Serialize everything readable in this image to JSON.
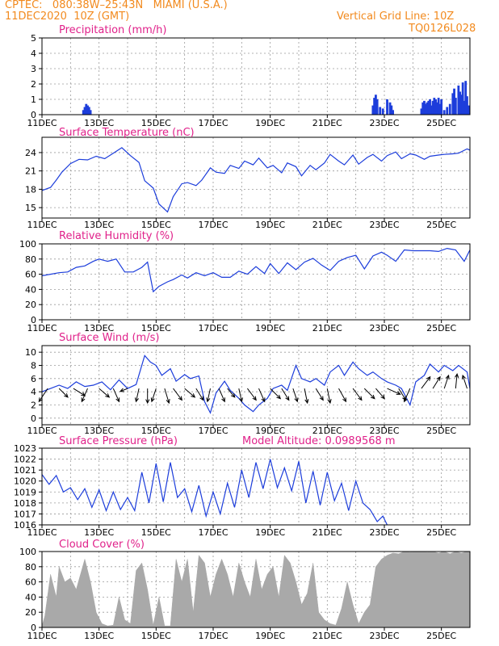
{
  "header": {
    "line1_left": "CPTEC:   080:38W–25:43N   MIAMI (U.S.A.)",
    "line2_left": "11DEC2020  10Z (GMT)",
    "line1_right": "Vertical Grid Line: 10Z",
    "line2_right": "TQ0126L028"
  },
  "colors": {
    "header": "#f28a1e",
    "title": "#e0218a",
    "line": "#1c3ddb",
    "bar": "#1c3ddb",
    "cloud": "#a9a9a9",
    "arrow": "#000000"
  },
  "chart_data": [
    {
      "type": "bar",
      "title": "Precipitation (mm/h)",
      "x_ticks": [
        "11DEC",
        "13DEC",
        "15DEC",
        "17DEC",
        "19DEC",
        "21DEC",
        "23DEC",
        "25DEC"
      ],
      "y_ticks": [
        "0",
        "1",
        "2",
        "3",
        "4",
        "5"
      ],
      "ylim": [
        0,
        5
      ],
      "x_range_days": [
        11,
        26
      ],
      "grid": true,
      "series": [
        {
          "x": [
            12.45,
            12.5,
            12.55,
            12.6,
            12.65,
            12.7,
            22.6,
            22.65,
            22.7,
            22.75,
            22.85,
            22.95,
            23.1,
            23.2,
            23.25,
            23.3,
            24.3,
            24.35,
            24.4,
            24.45,
            24.5,
            24.55,
            24.6,
            24.65,
            24.7,
            24.75,
            24.8,
            24.85,
            24.9,
            24.95,
            25.0,
            25.1,
            25.2,
            25.3,
            25.4,
            25.45,
            25.5,
            25.6,
            25.65,
            25.7,
            25.75,
            25.8,
            25.85,
            25.9,
            25.95
          ],
          "values": [
            0.3,
            0.5,
            0.7,
            0.6,
            0.5,
            0.3,
            0.6,
            1.1,
            1.3,
            1.0,
            0.5,
            0.4,
            1.0,
            0.8,
            0.6,
            0.3,
            0.4,
            0.8,
            0.9,
            0.7,
            0.8,
            0.9,
            1.0,
            0.6,
            0.9,
            1.1,
            1.0,
            0.8,
            1.1,
            0.7,
            1.0,
            0.3,
            0.5,
            0.7,
            1.4,
            1.7,
            1.1,
            1.9,
            1.5,
            1.3,
            2.1,
            0.9,
            2.2,
            1.2,
            0.6
          ]
        }
      ]
    },
    {
      "type": "line",
      "title": "Surface Temperature (nC)",
      "x_ticks": [
        "11DEC",
        "13DEC",
        "15DEC",
        "17DEC",
        "19DEC",
        "21DEC",
        "23DEC",
        "25DEC"
      ],
      "y_ticks": [
        "15",
        "18",
        "21",
        "24"
      ],
      "ylim": [
        13.3,
        26.5
      ],
      "x_range_days": [
        11,
        26
      ],
      "grid": true,
      "series": [
        {
          "x": [
            11.0,
            11.3,
            11.5,
            11.7,
            12.0,
            12.3,
            12.6,
            12.9,
            13.2,
            13.5,
            13.8,
            14.1,
            14.4,
            14.6,
            14.9,
            15.1,
            15.4,
            15.6,
            15.9,
            16.1,
            16.4,
            16.6,
            16.9,
            17.1,
            17.4,
            17.6,
            17.9,
            18.1,
            18.4,
            18.6,
            18.9,
            19.1,
            19.4,
            19.6,
            19.9,
            20.1,
            20.4,
            20.6,
            20.9,
            21.1,
            21.4,
            21.6,
            21.9,
            22.1,
            22.4,
            22.6,
            22.9,
            23.1,
            23.4,
            23.6,
            23.9,
            24.1,
            24.4,
            24.6,
            24.9,
            25.1,
            25.4,
            25.6,
            25.9,
            26.0
          ],
          "values": [
            17.8,
            18.3,
            19.5,
            20.8,
            22.2,
            22.9,
            22.8,
            23.4,
            23.0,
            23.9,
            24.8,
            23.5,
            22.4,
            19.4,
            18.2,
            15.6,
            14.3,
            16.8,
            18.9,
            19.1,
            18.6,
            19.5,
            21.5,
            20.8,
            20.6,
            21.9,
            21.4,
            22.6,
            22.0,
            23.1,
            21.5,
            21.9,
            20.7,
            22.3,
            21.7,
            20.2,
            21.9,
            21.2,
            22.3,
            23.7,
            22.6,
            22.0,
            23.6,
            22.1,
            23.2,
            23.7,
            22.6,
            23.5,
            24.1,
            23.0,
            23.8,
            23.6,
            22.9,
            23.4,
            23.6,
            23.7,
            23.8,
            23.9,
            24.6,
            24.4
          ]
        }
      ]
    },
    {
      "type": "line",
      "title": "Relative Humidity (%)",
      "x_ticks": [
        "11DEC",
        "13DEC",
        "15DEC",
        "17DEC",
        "19DEC",
        "21DEC",
        "23DEC",
        "25DEC"
      ],
      "y_ticks": [
        "0",
        "20",
        "40",
        "60",
        "80",
        "100"
      ],
      "ylim": [
        0,
        100
      ],
      "x_range_days": [
        11,
        26
      ],
      "grid": true,
      "series": [
        {
          "x": [
            11.0,
            11.3,
            11.6,
            11.9,
            12.2,
            12.5,
            12.8,
            13.0,
            13.3,
            13.6,
            13.9,
            14.2,
            14.5,
            14.7,
            14.9,
            15.1,
            15.4,
            15.6,
            15.9,
            16.1,
            16.4,
            16.7,
            17.0,
            17.3,
            17.6,
            17.9,
            18.2,
            18.5,
            18.8,
            19.0,
            19.3,
            19.6,
            19.9,
            20.2,
            20.5,
            20.8,
            21.1,
            21.4,
            21.7,
            22.0,
            22.3,
            22.6,
            22.9,
            23.1,
            23.4,
            23.7,
            24.0,
            24.3,
            24.6,
            24.9,
            25.2,
            25.5,
            25.8,
            26.0
          ],
          "values": [
            58,
            60,
            62,
            63,
            69,
            71,
            77,
            80,
            77,
            80,
            63,
            63,
            69,
            76,
            37,
            44,
            50,
            53,
            59,
            55,
            62,
            58,
            62,
            56,
            56,
            64,
            60,
            70,
            61,
            74,
            61,
            75,
            66,
            76,
            81,
            72,
            65,
            77,
            82,
            85,
            67,
            84,
            89,
            85,
            77,
            92,
            91,
            91,
            91,
            90,
            94,
            92,
            77,
            92
          ]
        }
      ]
    },
    {
      "type": "line",
      "title": "Surface Wind (m/s)",
      "x_ticks": [
        "11DEC",
        "13DEC",
        "15DEC",
        "17DEC",
        "19DEC",
        "21DEC",
        "23DEC",
        "25DEC"
      ],
      "y_ticks": [
        "0",
        "2",
        "4",
        "6",
        "8",
        "10"
      ],
      "ylim": [
        -1,
        11
      ],
      "x_range_days": [
        11,
        26
      ],
      "grid": true,
      "series": [
        {
          "x": [
            11.0,
            11.3,
            11.6,
            11.9,
            12.2,
            12.5,
            12.8,
            13.1,
            13.4,
            13.7,
            14.0,
            14.3,
            14.6,
            14.8,
            15.0,
            15.2,
            15.5,
            15.7,
            16.0,
            16.2,
            16.5,
            16.7,
            16.9,
            17.1,
            17.4,
            17.6,
            17.9,
            18.1,
            18.4,
            18.6,
            18.9,
            19.1,
            19.4,
            19.6,
            19.9,
            20.1,
            20.4,
            20.6,
            20.9,
            21.1,
            21.4,
            21.6,
            21.9,
            22.1,
            22.4,
            22.6,
            22.9,
            23.1,
            23.4,
            23.6,
            23.9,
            24.1,
            24.4,
            24.6,
            24.9,
            25.1,
            25.4,
            25.6,
            25.9,
            26.0
          ],
          "values": [
            4.0,
            4.5,
            5.0,
            4.5,
            5.5,
            4.8,
            5.0,
            5.5,
            4.3,
            5.8,
            4.5,
            5.1,
            9.5,
            8.5,
            8.0,
            6.5,
            7.5,
            5.6,
            6.6,
            6.0,
            6.4,
            2.5,
            0.8,
            3.8,
            5.6,
            4.2,
            3.0,
            2.0,
            1.0,
            2.0,
            3.0,
            4.5,
            5.0,
            4.2,
            8.0,
            6.0,
            5.5,
            6.0,
            5.0,
            7.0,
            8.0,
            6.5,
            8.5,
            7.5,
            6.5,
            7.0,
            6.0,
            5.5,
            5.0,
            4.5,
            2.0,
            5.5,
            6.5,
            8.2,
            7.0,
            8.0,
            7.2,
            8.0,
            7.0,
            4.5
          ]
        }
      ],
      "wind_vectors": {
        "x": [
          11.2,
          11.6,
          12.1,
          12.6,
          13.0,
          13.5,
          14.0,
          14.4,
          14.7,
          15.0,
          15.3,
          15.6,
          16.0,
          16.4,
          16.9,
          17.2,
          17.5,
          17.9,
          18.2,
          18.6,
          19.0,
          19.4,
          19.8,
          20.2,
          20.6,
          21.0,
          21.4,
          21.9,
          22.3,
          22.7,
          23.1,
          23.5,
          23.9,
          24.3,
          24.7,
          25.1,
          25.5,
          25.9
        ],
        "u": [
          -0.6,
          0.6,
          0.8,
          -0.4,
          0.7,
          0.4,
          -0.5,
          -0.2,
          0.0,
          -0.3,
          0.3,
          0.6,
          0.7,
          0.5,
          -0.2,
          0.4,
          0.5,
          0.2,
          0.6,
          0.4,
          0.7,
          0.5,
          0.3,
          0.2,
          0.5,
          0.2,
          0.5,
          0.6,
          0.7,
          0.6,
          0.9,
          0.5,
          -0.4,
          0.6,
          0.5,
          0.3,
          0.1,
          -0.3
        ],
        "v": [
          0.9,
          0.6,
          0.5,
          0.9,
          0.6,
          0.9,
          0.2,
          0.9,
          1.0,
          0.9,
          1.0,
          0.8,
          0.6,
          0.8,
          0.9,
          0.9,
          0.6,
          0.9,
          0.8,
          0.9,
          0.7,
          0.8,
          0.9,
          1.0,
          0.8,
          1.0,
          0.9,
          0.8,
          0.7,
          0.7,
          0.4,
          0.8,
          0.9,
          -0.8,
          -0.8,
          -0.9,
          -1.0,
          -0.9
        ]
      }
    },
    {
      "type": "line",
      "title": "Surface Pressure (hPa)",
      "annotation": "Model Altitude: 0.0989568 m",
      "x_ticks": [
        "11DEC",
        "13DEC",
        "15DEC",
        "17DEC",
        "19DEC",
        "21DEC",
        "23DEC",
        "25DEC"
      ],
      "y_ticks": [
        "1016",
        "1017",
        "1018",
        "1019",
        "1020",
        "1021",
        "1022",
        "1023"
      ],
      "ylim": [
        1016,
        1023
      ],
      "x_range_days": [
        11,
        26
      ],
      "grid": true,
      "series": [
        {
          "x": [
            11.0,
            11.25,
            11.5,
            11.75,
            12.0,
            12.25,
            12.5,
            12.75,
            13.0,
            13.25,
            13.5,
            13.75,
            14.0,
            14.25,
            14.5,
            14.75,
            15.0,
            15.25,
            15.5,
            15.75,
            16.0,
            16.25,
            16.5,
            16.75,
            17.0,
            17.25,
            17.5,
            17.75,
            18.0,
            18.25,
            18.5,
            18.75,
            19.0,
            19.25,
            19.5,
            19.75,
            20.0,
            20.25,
            20.5,
            20.75,
            21.0,
            21.25,
            21.5,
            21.75,
            22.0,
            22.25,
            22.5,
            22.75,
            22.95,
            23.1
          ],
          "values": [
            1020.6,
            1019.7,
            1020.5,
            1019.0,
            1019.4,
            1018.3,
            1019.3,
            1017.6,
            1019.2,
            1017.3,
            1019.0,
            1017.4,
            1018.5,
            1017.3,
            1020.8,
            1018.0,
            1021.6,
            1018.1,
            1021.7,
            1018.5,
            1019.3,
            1017.2,
            1019.6,
            1016.8,
            1019.0,
            1017.0,
            1019.8,
            1017.6,
            1021.0,
            1018.5,
            1021.7,
            1019.3,
            1022.0,
            1019.4,
            1021.2,
            1019.1,
            1021.8,
            1018.0,
            1020.9,
            1017.8,
            1020.8,
            1018.2,
            1019.8,
            1017.3,
            1020.0,
            1018.0,
            1017.4,
            1016.3,
            1016.8,
            1016.0
          ]
        }
      ]
    },
    {
      "type": "area",
      "title": "Cloud Cover (%)",
      "x_ticks": [
        "11DEC",
        "13DEC",
        "15DEC",
        "17DEC",
        "19DEC",
        "21DEC",
        "23DEC",
        "25DEC"
      ],
      "y_ticks": [
        "0",
        "20",
        "40",
        "60",
        "80",
        "100"
      ],
      "ylim": [
        0,
        100
      ],
      "x_range_days": [
        11,
        26
      ],
      "grid": true,
      "series": [
        {
          "x": [
            11.0,
            11.1,
            11.3,
            11.5,
            11.6,
            11.8,
            12.0,
            12.2,
            12.5,
            12.7,
            12.9,
            13.1,
            13.3,
            13.5,
            13.7,
            13.9,
            14.1,
            14.3,
            14.5,
            14.7,
            14.9,
            15.1,
            15.3,
            15.5,
            15.7,
            15.9,
            16.1,
            16.3,
            16.5,
            16.7,
            16.9,
            17.1,
            17.3,
            17.5,
            17.7,
            17.9,
            18.1,
            18.3,
            18.5,
            18.7,
            18.9,
            19.1,
            19.3,
            19.5,
            19.7,
            19.9,
            20.1,
            20.3,
            20.5,
            20.7,
            20.9,
            21.1,
            21.3,
            21.5,
            21.7,
            21.9,
            22.1,
            22.3,
            22.5,
            22.7,
            22.9,
            23.1,
            23.3,
            23.5,
            23.7,
            23.9,
            24.1,
            24.3,
            24.5,
            24.7,
            24.9,
            25.1,
            25.3,
            25.5,
            25.7,
            25.9,
            26.0
          ],
          "values": [
            2,
            15,
            70,
            40,
            80,
            60,
            65,
            50,
            90,
            60,
            20,
            5,
            2,
            3,
            40,
            10,
            5,
            75,
            85,
            50,
            3,
            40,
            2,
            2,
            90,
            60,
            90,
            20,
            95,
            85,
            40,
            70,
            90,
            70,
            40,
            85,
            60,
            40,
            90,
            50,
            70,
            80,
            40,
            95,
            85,
            60,
            30,
            45,
            85,
            20,
            10,
            5,
            3,
            25,
            60,
            30,
            5,
            20,
            30,
            80,
            90,
            95,
            98,
            97,
            100,
            99,
            100,
            100,
            99,
            100,
            98,
            100,
            97,
            100,
            98,
            100,
            99
          ]
        }
      ]
    }
  ]
}
